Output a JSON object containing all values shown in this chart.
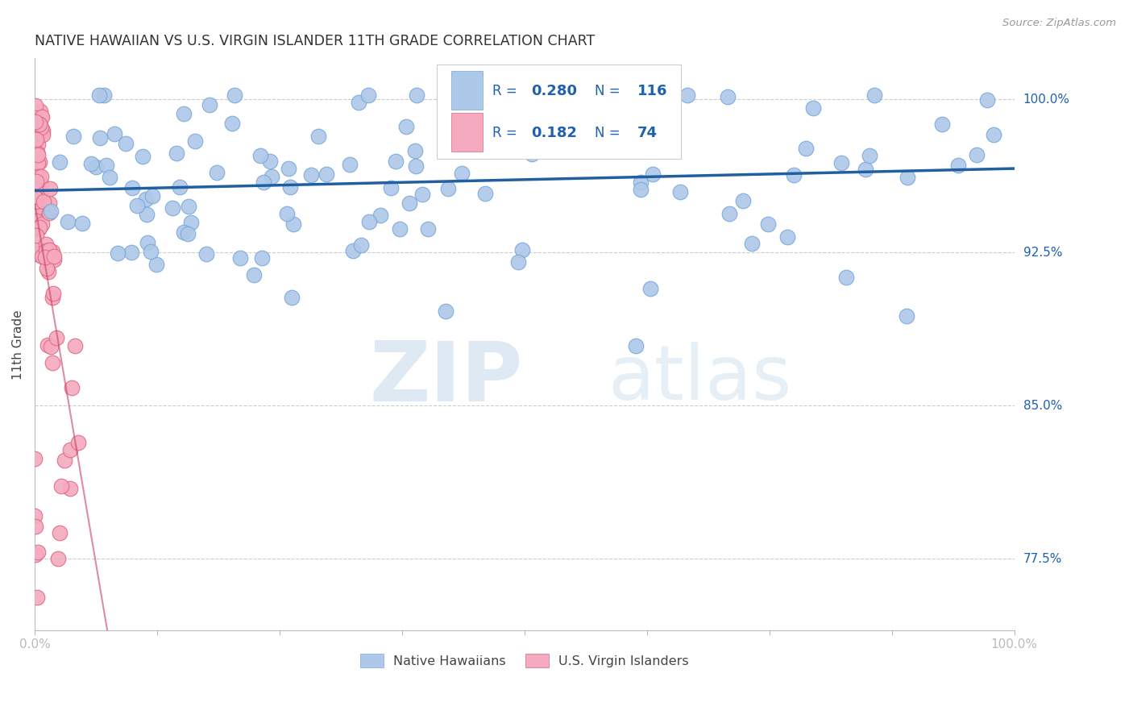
{
  "title": "NATIVE HAWAIIAN VS U.S. VIRGIN ISLANDER 11TH GRADE CORRELATION CHART",
  "source": "Source: ZipAtlas.com",
  "ylabel": "11th Grade",
  "yticks": [
    0.775,
    0.85,
    0.925,
    1.0
  ],
  "ytick_labels": [
    "77.5%",
    "85.0%",
    "92.5%",
    "100.0%"
  ],
  "xlim": [
    0.0,
    1.0
  ],
  "ylim": [
    0.74,
    1.02
  ],
  "blue_color": "#adc8e8",
  "blue_edge_color": "#78a8d8",
  "pink_color": "#f5aabf",
  "pink_edge_color": "#e06880",
  "trendline_blue": "#2060a0",
  "trendline_pink": "#c84060",
  "legend_R_blue": "0.280",
  "legend_N_blue": "116",
  "legend_R_pink": "0.182",
  "legend_N_pink": "74",
  "watermark_ZIP": "ZIP",
  "watermark_atlas": "atlas",
  "blue_seed": 42,
  "pink_seed": 99
}
